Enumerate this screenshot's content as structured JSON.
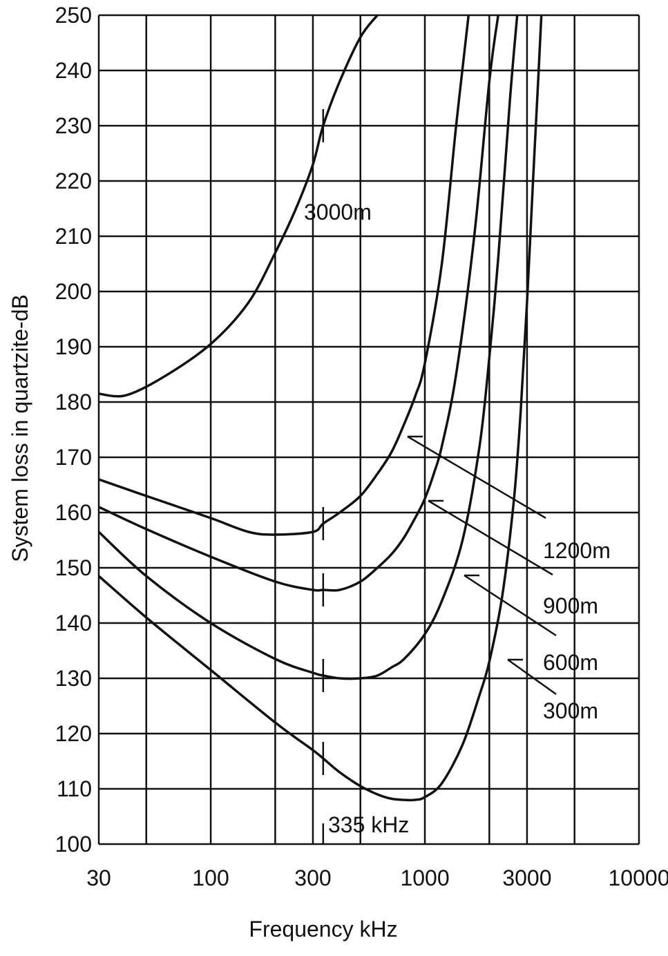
{
  "chart_data": {
    "type": "line",
    "title": "",
    "xlabel": "Frequency kHz",
    "ylabel": "System loss in quartzite-dB",
    "xscale": "log",
    "xlim": [
      30,
      10000
    ],
    "ylim": [
      100,
      250
    ],
    "x_ticks": [
      30,
      100,
      300,
      1000,
      3000,
      10000
    ],
    "x_tick_labels": [
      "30",
      "100",
      "300",
      "1000",
      "3000",
      "10000"
    ],
    "y_ticks": [
      100,
      110,
      120,
      130,
      140,
      150,
      160,
      170,
      180,
      190,
      200,
      210,
      220,
      230,
      240,
      250
    ],
    "y_tick_labels": [
      "100",
      "110",
      "120",
      "130",
      "140",
      "150",
      "160",
      "170",
      "180",
      "190",
      "200",
      "210",
      "220",
      "230",
      "240",
      "250"
    ],
    "grid": true,
    "marker_annotation": {
      "frequency_khz": 335,
      "label": "335 kHz"
    },
    "series": [
      {
        "name": "3000m",
        "x": [
          30,
          40,
          60,
          100,
          150,
          200,
          250,
          300,
          335,
          400,
          500,
          600
        ],
        "y": [
          181.5,
          181.2,
          184.5,
          190.5,
          198,
          207,
          215,
          223,
          230,
          238,
          246,
          250
        ]
      },
      {
        "name": "1200m",
        "x": [
          30,
          50,
          100,
          150,
          200,
          300,
          335,
          400,
          500,
          600,
          700,
          800,
          900,
          1000,
          1200,
          1400,
          1600
        ],
        "y": [
          166,
          163,
          159,
          156.5,
          156,
          156.5,
          158,
          160,
          163,
          167,
          171,
          176,
          181,
          187,
          205,
          230,
          250
        ]
      },
      {
        "name": "900m",
        "x": [
          30,
          50,
          100,
          200,
          300,
          335,
          400,
          500,
          600,
          700,
          800,
          900,
          1000,
          1100,
          1200,
          1400,
          1700,
          2000,
          2200
        ],
        "y": [
          161,
          157,
          152,
          147.5,
          146,
          146,
          146,
          147.5,
          150,
          152.5,
          155.5,
          159,
          162.5,
          167,
          172,
          185,
          210,
          238,
          250
        ]
      },
      {
        "name": "600m",
        "x": [
          30,
          50,
          100,
          200,
          300,
          335,
          400,
          500,
          600,
          700,
          800,
          1000,
          1200,
          1500,
          1800,
          2000,
          2200,
          2500,
          2700
        ],
        "y": [
          156.5,
          148.5,
          140,
          133.5,
          131,
          130.5,
          130,
          130,
          130.5,
          132,
          133.5,
          138,
          144,
          155,
          172,
          188,
          206,
          235,
          250
        ]
      },
      {
        "name": "300m",
        "x": [
          30,
          50,
          100,
          200,
          300,
          335,
          400,
          500,
          600,
          700,
          800,
          900,
          1000,
          1200,
          1500,
          1800,
          2000,
          2300,
          2600,
          2800,
          3000,
          3200,
          3400,
          3500
        ],
        "y": [
          148.5,
          141,
          131.5,
          122,
          117,
          115.5,
          113,
          110.5,
          109,
          108.2,
          108,
          108,
          108.5,
          111,
          118,
          127,
          133,
          145,
          162,
          178,
          198,
          220,
          240,
          250
        ]
      }
    ]
  }
}
